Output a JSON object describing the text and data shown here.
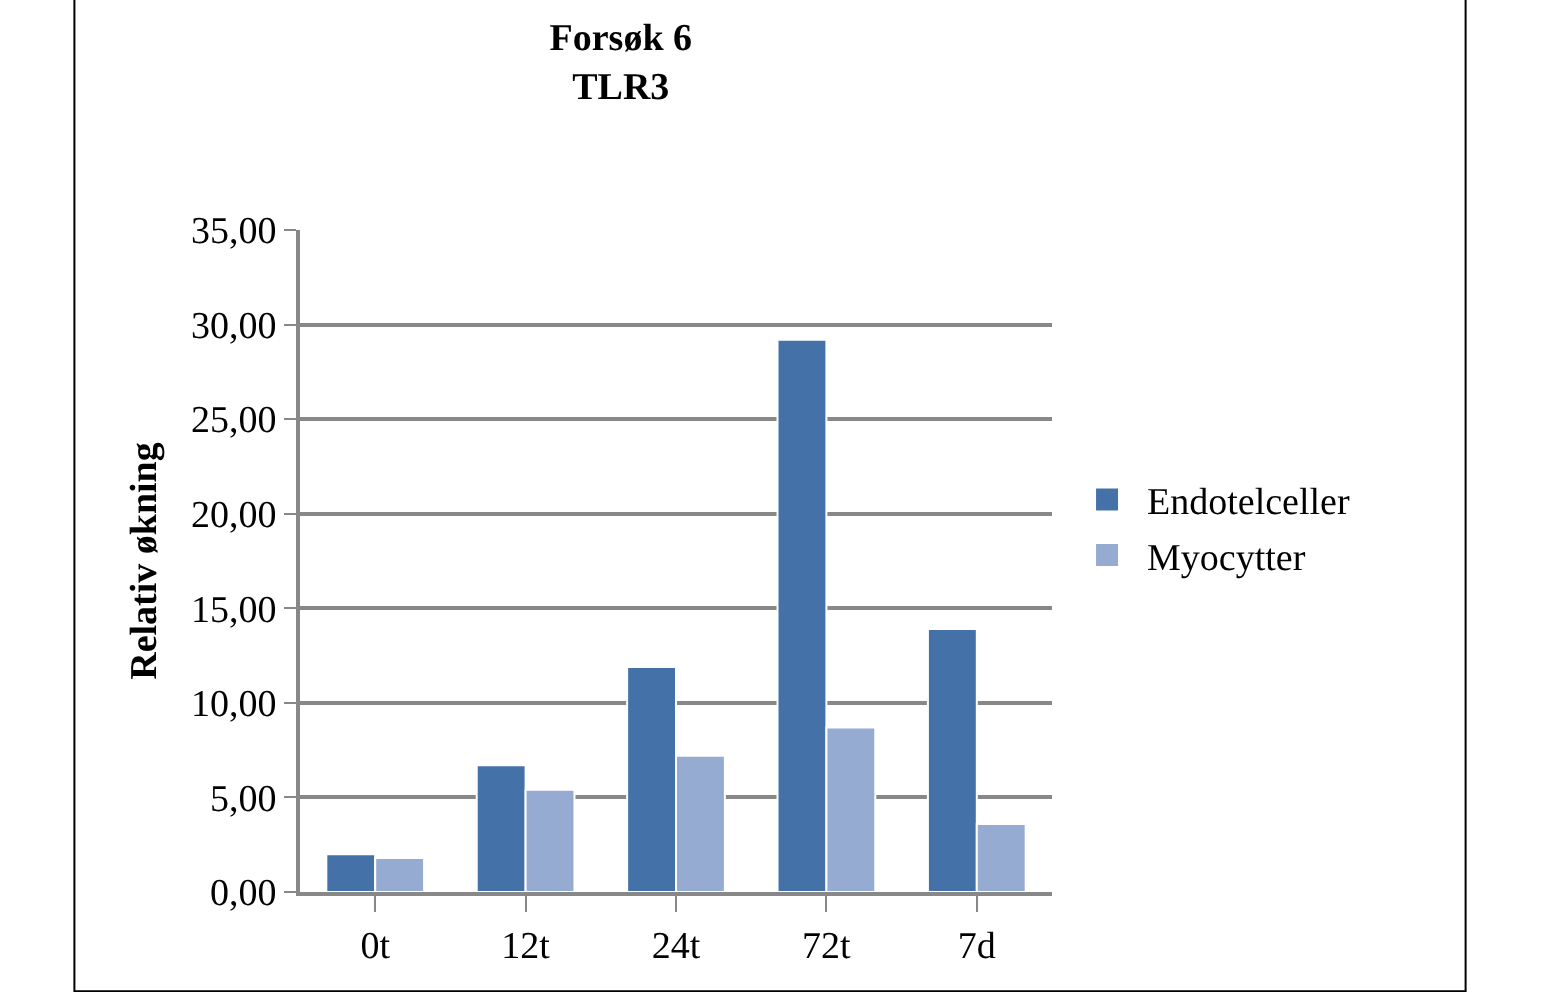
{
  "chart_data": {
    "type": "bar",
    "title": "Forsøk 6\nTLR3",
    "ylabel": "Relativ økning",
    "categories": [
      "0t",
      "12t",
      "24t",
      "72t",
      "7d"
    ],
    "series": [
      {
        "name": "Endotelceller",
        "color": "#4472a8",
        "values": [
          2.0,
          6.7,
          11.9,
          29.2,
          13.9
        ]
      },
      {
        "name": "Myocytter",
        "color": "#95abd2",
        "values": [
          1.8,
          5.4,
          7.2,
          8.7,
          3.6
        ]
      }
    ],
    "ylim": [
      0,
      35
    ],
    "yticks": [
      {
        "value": 0,
        "label": "0,00"
      },
      {
        "value": 5,
        "label": "5,00"
      },
      {
        "value": 10,
        "label": "10,00"
      },
      {
        "value": 15,
        "label": "15,00"
      },
      {
        "value": 20,
        "label": "20,00"
      },
      {
        "value": 25,
        "label": "25,00"
      },
      {
        "value": 30,
        "label": "30,00"
      },
      {
        "value": 35,
        "label": "35,00"
      }
    ],
    "grid": "y",
    "legend": "right"
  }
}
